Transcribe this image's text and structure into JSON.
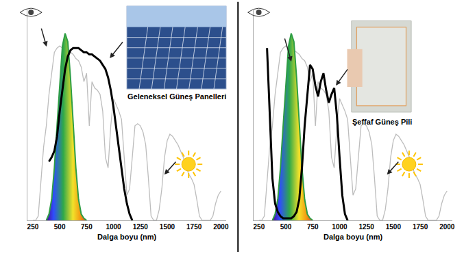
{
  "chart_data": [
    {
      "type": "line",
      "xlabel": "Dalga boyu (nm)",
      "annotations": [
        "Geleneksel Güneş Panelleri"
      ],
      "x": [
        250,
        275,
        300,
        325,
        350,
        375,
        400,
        425,
        450,
        475,
        500,
        525,
        550,
        575,
        600,
        625,
        650,
        675,
        700,
        725,
        750,
        775,
        800,
        825,
        850,
        875,
        900,
        925,
        950,
        975,
        1000,
        1025,
        1050,
        1075,
        1100,
        1125,
        1150,
        1175,
        1200,
        1225,
        1250,
        1275,
        1300,
        1325,
        1350,
        1375,
        1400,
        1425,
        1450,
        1475,
        1500,
        1525,
        1550,
        1575,
        1600,
        1625,
        1650,
        1675,
        1700,
        1725,
        1750,
        1775,
        1800,
        1825,
        1850,
        1875,
        1900,
        1925,
        1950,
        1975,
        2000
      ],
      "xlim": [
        200,
        2050
      ],
      "xticks": [
        250,
        500,
        750,
        1000,
        1250,
        1500,
        1750,
        2000
      ],
      "ylim": [
        0,
        1
      ],
      "yticks": [],
      "tick_labels": "x",
      "grid": false,
      "series": [
        {
          "color": "#bdbdbd",
          "type": "line",
          "values": [
            0,
            0,
            0.02,
            0.2,
            0.35,
            0.45,
            0.6,
            0.7,
            0.8,
            0.82,
            0.83,
            0.82,
            0.82,
            0.81,
            0.8,
            0.79,
            0.77,
            0.76,
            0.73,
            0.66,
            0.7,
            0.45,
            0.66,
            0.63,
            0.62,
            0.6,
            0.52,
            0.3,
            0.25,
            0.45,
            0.58,
            0.55,
            0.52,
            0.48,
            0.3,
            0.12,
            0.15,
            0.3,
            0.45,
            0.46,
            0.45,
            0.42,
            0.36,
            0.2,
            0.02,
            0,
            0,
            0.05,
            0.15,
            0.3,
            0.38,
            0.41,
            0.4,
            0.38,
            0.36,
            0.33,
            0.3,
            0.26,
            0.22,
            0.2,
            0.17,
            0.1,
            0.02,
            0,
            0,
            0,
            0,
            0.02,
            0.08,
            0.12,
            0.14
          ]
        },
        {
          "color": "#2e9e44",
          "type": "area",
          "values": [
            null,
            null,
            null,
            null,
            null,
            0,
            0.03,
            0.1,
            0.25,
            0.45,
            0.66,
            0.83,
            0.89,
            0.85,
            0.68,
            0.45,
            0.25,
            0.1,
            0.03,
            0.01,
            0,
            null,
            null,
            null,
            null,
            null,
            null,
            null,
            null,
            null,
            null,
            null,
            null,
            null,
            null,
            null,
            null,
            null,
            null,
            null,
            null,
            null,
            null,
            null,
            null,
            null,
            null,
            null,
            null,
            null,
            null,
            null,
            null,
            null,
            null,
            null,
            null,
            null,
            null,
            null,
            null,
            null,
            null,
            null,
            null,
            null,
            null,
            null,
            null,
            null,
            null
          ]
        },
        {
          "color": "#000000",
          "type": "line",
          "values": [
            null,
            null,
            null,
            null,
            null,
            null,
            0.28,
            0.3,
            0.33,
            0.4,
            0.52,
            0.62,
            0.72,
            0.78,
            0.81,
            0.82,
            0.82,
            0.82,
            0.81,
            0.8,
            0.8,
            0.79,
            0.79,
            0.78,
            0.77,
            0.76,
            0.74,
            0.72,
            0.68,
            0.62,
            0.54,
            0.44,
            0.34,
            0.24,
            0.15,
            0.08,
            0.03,
            0,
            null,
            null,
            null,
            null,
            null,
            null,
            null,
            null,
            null,
            null,
            null,
            null,
            null,
            null,
            null,
            null,
            null,
            null,
            null,
            null,
            null,
            null,
            null,
            null,
            null,
            null,
            null,
            null,
            null,
            null,
            null,
            null,
            null
          ]
        }
      ]
    },
    {
      "type": "line",
      "xlabel": "Dalga boyu (nm)",
      "annotations": [
        "Şeffaf Güneş Pili"
      ],
      "x": [
        250,
        275,
        300,
        325,
        350,
        375,
        400,
        425,
        450,
        475,
        500,
        525,
        550,
        575,
        600,
        625,
        650,
        675,
        700,
        725,
        750,
        775,
        800,
        825,
        850,
        875,
        900,
        925,
        950,
        975,
        1000,
        1025,
        1050,
        1075,
        1100,
        1125,
        1150,
        1175,
        1200,
        1225,
        1250,
        1275,
        1300,
        1325,
        1350,
        1375,
        1400,
        1425,
        1450,
        1475,
        1500,
        1525,
        1550,
        1575,
        1600,
        1625,
        1650,
        1675,
        1700,
        1725,
        1750,
        1775,
        1800,
        1825,
        1850,
        1875,
        1900,
        1925,
        1950,
        1975,
        2000
      ],
      "xlim": [
        200,
        2050
      ],
      "xticks": [
        250,
        500,
        750,
        1000,
        1250,
        1500,
        1750,
        2000
      ],
      "ylim": [
        0,
        1
      ],
      "yticks": [],
      "tick_labels": "x",
      "grid": false,
      "series": [
        {
          "color": "#bdbdbd",
          "type": "line",
          "values": [
            0,
            0,
            0.02,
            0.2,
            0.35,
            0.45,
            0.6,
            0.7,
            0.8,
            0.82,
            0.83,
            0.82,
            0.82,
            0.81,
            0.8,
            0.79,
            0.77,
            0.76,
            0.73,
            0.66,
            0.7,
            0.45,
            0.66,
            0.63,
            0.62,
            0.6,
            0.52,
            0.3,
            0.25,
            0.45,
            0.58,
            0.55,
            0.52,
            0.48,
            0.3,
            0.12,
            0.15,
            0.3,
            0.45,
            0.46,
            0.45,
            0.42,
            0.36,
            0.2,
            0.02,
            0,
            0,
            0.05,
            0.15,
            0.3,
            0.38,
            0.41,
            0.4,
            0.38,
            0.36,
            0.33,
            0.3,
            0.26,
            0.22,
            0.2,
            0.17,
            0.1,
            0.02,
            0,
            0,
            0,
            0,
            0.02,
            0.08,
            0.12,
            0.14
          ]
        },
        {
          "color": "#2e9e44",
          "type": "area",
          "values": [
            null,
            null,
            null,
            null,
            null,
            0,
            0.03,
            0.1,
            0.25,
            0.45,
            0.66,
            0.83,
            0.89,
            0.85,
            0.68,
            0.45,
            0.25,
            0.1,
            0.03,
            0.01,
            0,
            null,
            null,
            null,
            null,
            null,
            null,
            null,
            null,
            null,
            null,
            null,
            null,
            null,
            null,
            null,
            null,
            null,
            null,
            null,
            null,
            null,
            null,
            null,
            null,
            null,
            null,
            null,
            null,
            null,
            null,
            null,
            null,
            null,
            null,
            null,
            null,
            null,
            null,
            null,
            null,
            null,
            null,
            null,
            null,
            null,
            null,
            null,
            null,
            null,
            null
          ]
        },
        {
          "color": "#000000",
          "type": "line",
          "values": [
            null,
            null,
            null,
            0.82,
            0.5,
            0.2,
            0.08,
            0.04,
            0.02,
            0.01,
            0.01,
            0.01,
            0.01,
            0.02,
            0.04,
            0.1,
            0.25,
            0.45,
            0.6,
            0.74,
            0.72,
            0.64,
            0.59,
            0.66,
            0.7,
            0.62,
            0.56,
            0.6,
            0.63,
            0.5,
            0.3,
            0.12,
            0.03,
            0,
            null,
            null,
            null,
            null,
            null,
            null,
            null,
            null,
            null,
            null,
            null,
            null,
            null,
            null,
            null,
            null,
            null,
            null,
            null,
            null,
            null,
            null,
            null,
            null,
            null,
            null,
            null,
            null,
            null,
            null,
            null,
            null,
            null,
            null,
            null,
            null,
            null
          ]
        }
      ]
    }
  ]
}
